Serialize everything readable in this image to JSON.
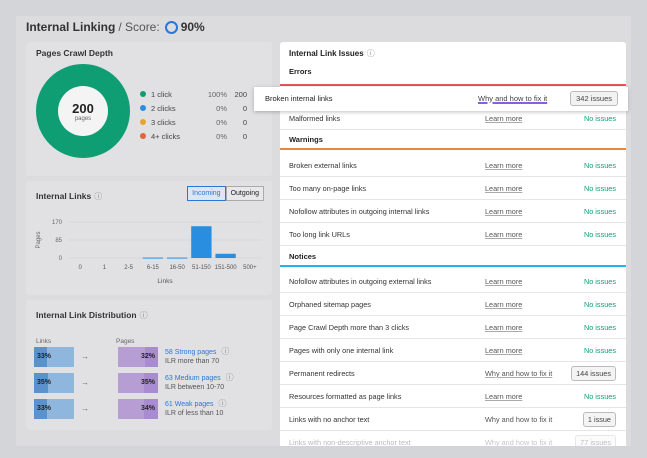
{
  "header": {
    "title": "Internal Linking",
    "separator": "/ Score:",
    "score": "90%"
  },
  "crawl_depth": {
    "title": "Pages Crawl Depth",
    "total": "200",
    "total_label": "pages",
    "legend": [
      {
        "label": "1 click",
        "pct": "100%",
        "count": "200",
        "color": "#0f9e74"
      },
      {
        "label": "2 clicks",
        "pct": "0%",
        "count": "0",
        "color": "#2a8ee0"
      },
      {
        "label": "3 clicks",
        "pct": "0%",
        "count": "0",
        "color": "#e5a52a"
      },
      {
        "label": "4+ clicks",
        "pct": "0%",
        "count": "0",
        "color": "#e0663a"
      }
    ]
  },
  "internal_links": {
    "title": "Internal Links",
    "toggle": {
      "incoming": "Incoming",
      "outgoing": "Outgoing"
    }
  },
  "distribution": {
    "title": "Internal Link Distribution",
    "col_links": "Links",
    "col_pages": "Pages",
    "rows": [
      {
        "links": "33%",
        "links_value": 33,
        "pages": "32%",
        "pages_value": 32,
        "name": "58 Strong pages",
        "desc": "ILR more than 70"
      },
      {
        "links": "35%",
        "links_value": 35,
        "pages": "35%",
        "pages_value": 35,
        "name": "63 Medium pages",
        "desc": "ILR between 10-70"
      },
      {
        "links": "33%",
        "links_value": 33,
        "pages": "34%",
        "pages_value": 34,
        "name": "61 Weak pages",
        "desc": "ILR of less than 10"
      }
    ]
  },
  "chart_data": {
    "type": "bar",
    "title": "Internal Links",
    "xlabel": "Links",
    "ylabel": "Pages",
    "categories": [
      "0",
      "1",
      "2-5",
      "6-15",
      "16-50",
      "51-150",
      "151-500",
      "500+"
    ],
    "values": [
      0,
      0,
      0,
      2,
      2,
      150,
      20,
      0
    ],
    "yticks": [
      "170",
      "85",
      "0"
    ],
    "ylim": [
      0,
      170
    ],
    "grid": true
  },
  "issues": {
    "title": "Internal Link Issues",
    "errors_label": "Errors",
    "warnings_label": "Warnings",
    "notices_label": "Notices",
    "highlight": {
      "name": "Broken internal links",
      "link": "Why and how to fix it",
      "badge": "342 issues"
    },
    "errors": [
      {
        "name": "Malformed links",
        "link": "Learn more",
        "status": "No issues"
      }
    ],
    "warnings": [
      {
        "name": "Broken external links",
        "link": "Learn more",
        "status": "No issues"
      },
      {
        "name": "Too many on-page links",
        "link": "Learn more",
        "status": "No issues"
      },
      {
        "name": "Nofollow attributes in outgoing internal links",
        "link": "Learn more",
        "status": "No issues"
      },
      {
        "name": "Too long link URLs",
        "link": "Learn more",
        "status": "No issues"
      }
    ],
    "notices": [
      {
        "name": "Nofollow attributes in outgoing external links",
        "link": "Learn more",
        "status": "No issues"
      },
      {
        "name": "Orphaned sitemap pages",
        "link": "Learn more",
        "status": "No issues"
      },
      {
        "name": "Page Crawl Depth more than 3 clicks",
        "link": "Learn more",
        "status": "No issues"
      },
      {
        "name": "Pages with only one internal link",
        "link": "Learn more",
        "status": "No issues"
      },
      {
        "name": "Permanent redirects",
        "link": "Why and how to fix it",
        "badge": "144 issues"
      },
      {
        "name": "Resources formatted as page links",
        "link": "Learn more",
        "status": "No issues"
      },
      {
        "name": "Links with no anchor text",
        "link": "Why and how to fix it",
        "badge": "1 issue"
      },
      {
        "name": "Links with non-descriptive anchor text",
        "link": "Why and how to fix it",
        "badge": "77 issues"
      }
    ]
  }
}
